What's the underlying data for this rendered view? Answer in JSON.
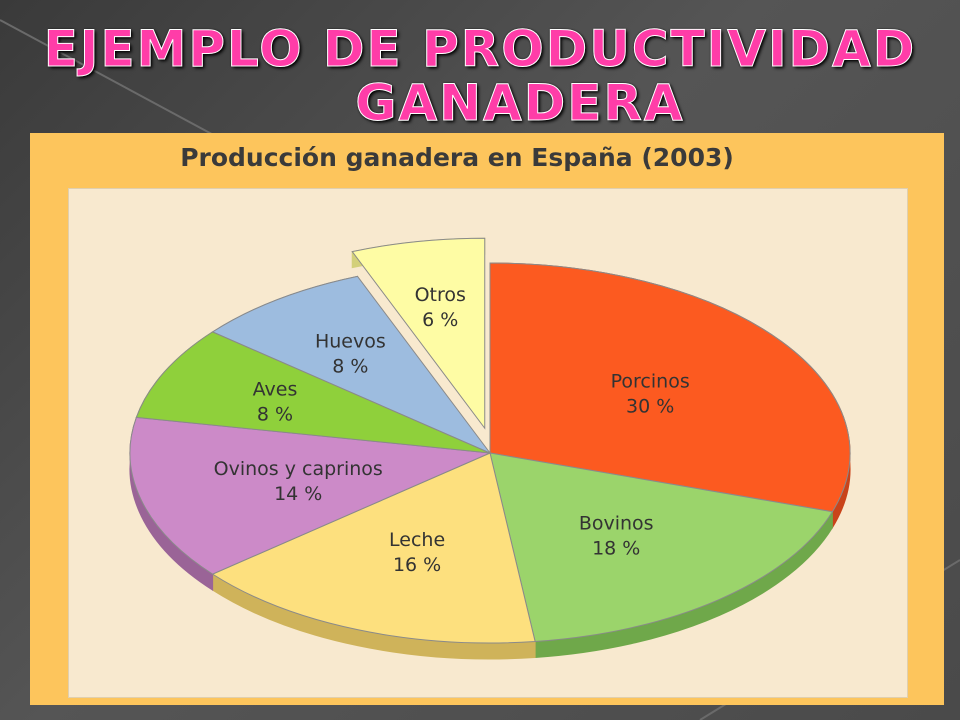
{
  "slide": {
    "title_line1": "Ejemplo de Productividad",
    "title_line2": "ganadera"
  },
  "chart_data": {
    "type": "pie",
    "title": "Producción ganadera en España (2003)",
    "unit": "%",
    "slices": [
      {
        "label": "Porcinos",
        "value": 30,
        "display": "30 %",
        "color": "#fc5a20",
        "side": "#c9431a",
        "exploded": false
      },
      {
        "label": "Bovinos",
        "value": 18,
        "display": "18 %",
        "color": "#9bd46b",
        "side": "#6fa84a",
        "exploded": false
      },
      {
        "label": "Leche",
        "value": 16,
        "display": "16 %",
        "color": "#fde07e",
        "side": "#cfb35a",
        "exploded": false
      },
      {
        "label": "Ovinos y caprinos",
        "value": 14,
        "display": "14 %",
        "color": "#cc8ac8",
        "side": "#9a6497",
        "exploded": false
      },
      {
        "label": "Aves",
        "value": 8,
        "display": "8 %",
        "color": "#8fd03b",
        "side": "#68a026",
        "exploded": false
      },
      {
        "label": "Huevos",
        "value": 8,
        "display": "8 %",
        "color": "#9dbcdf",
        "side": "#7492b5",
        "exploded": false
      },
      {
        "label": "Otros",
        "value": 6,
        "display": "6 %",
        "color": "#fefca4",
        "side": "#d3d07a",
        "exploded": true
      }
    ]
  }
}
